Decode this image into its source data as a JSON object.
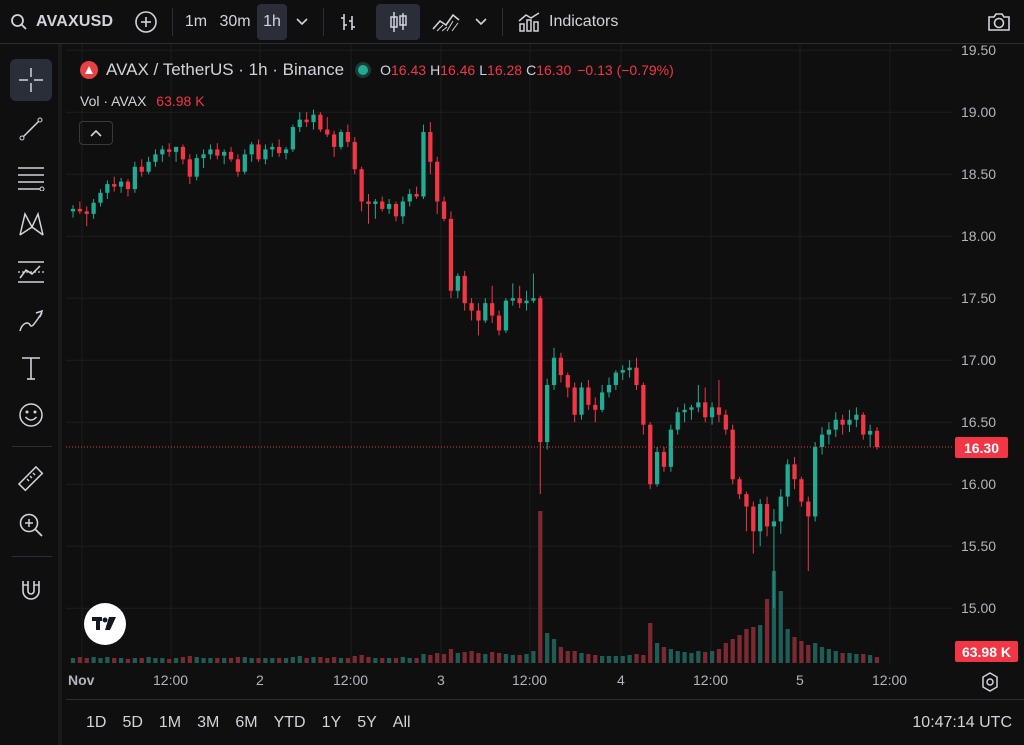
{
  "toolbar": {
    "symbol": "AVAXUSD",
    "intervals": [
      "1m",
      "30m",
      "1h"
    ],
    "active_interval": "1h",
    "indicators_label": "Indicators"
  },
  "legend": {
    "title": "AVAX / TetherUS · 1h · Binance",
    "o_label": "O",
    "o_value": "16.43",
    "h_label": "H",
    "h_value": "16.46",
    "l_label": "L",
    "l_value": "16.28",
    "c_label": "C",
    "c_value": "16.30",
    "change": "−0.13 (−0.79%)",
    "vol_label": "Vol · AVAX",
    "vol_value": "63.98 K"
  },
  "price_axis": {
    "ticks": [
      "19.50",
      "19.00",
      "18.50",
      "18.00",
      "17.50",
      "17.00",
      "16.50",
      "16.00",
      "15.50",
      "15.00"
    ],
    "tick_values": [
      19.5,
      19.0,
      18.5,
      18.0,
      17.5,
      17.0,
      16.5,
      16.0,
      15.5,
      15.0
    ],
    "last_price_badge": "16.30",
    "last_volume_badge": "63.98 K"
  },
  "time_axis": {
    "labels": [
      "Nov",
      "12:00",
      "2",
      "12:00",
      "3",
      "12:00",
      "4",
      "12:00",
      "5",
      "12:00"
    ]
  },
  "bottom": {
    "ranges": [
      "1D",
      "5D",
      "1M",
      "3M",
      "6M",
      "YTD",
      "1Y",
      "5Y",
      "All"
    ],
    "clock": "10:47:14 UTC"
  },
  "colors": {
    "up": "#22ab94",
    "down": "#f23645",
    "vol_up": "#1e5c55",
    "vol_down": "#7a2a30",
    "grid": "#1e1e1e",
    "background": "#0f0f0f"
  },
  "chart_data": {
    "type": "candlestick",
    "ylim": [
      14.55,
      19.55
    ],
    "candles": [
      [
        18.2,
        18.25,
        18.15,
        18.22
      ],
      [
        18.22,
        18.28,
        18.18,
        18.2
      ],
      [
        18.2,
        18.24,
        18.08,
        18.18
      ],
      [
        18.18,
        18.3,
        18.14,
        18.27
      ],
      [
        18.27,
        18.38,
        18.24,
        18.35
      ],
      [
        18.35,
        18.45,
        18.3,
        18.42
      ],
      [
        18.42,
        18.48,
        18.36,
        18.4
      ],
      [
        18.4,
        18.47,
        18.35,
        18.44
      ],
      [
        18.44,
        18.46,
        18.32,
        18.38
      ],
      [
        18.38,
        18.6,
        18.35,
        18.56
      ],
      [
        18.56,
        18.62,
        18.48,
        18.52
      ],
      [
        18.52,
        18.64,
        18.5,
        18.6
      ],
      [
        18.6,
        18.7,
        18.56,
        18.66
      ],
      [
        18.66,
        18.73,
        18.6,
        18.7
      ],
      [
        18.7,
        18.75,
        18.64,
        18.68
      ],
      [
        18.68,
        18.72,
        18.6,
        18.72
      ],
      [
        18.72,
        18.74,
        18.58,
        18.62
      ],
      [
        18.62,
        18.66,
        18.42,
        18.48
      ],
      [
        18.48,
        18.66,
        18.45,
        18.63
      ],
      [
        18.63,
        18.7,
        18.55,
        18.66
      ],
      [
        18.66,
        18.74,
        18.62,
        18.7
      ],
      [
        18.7,
        18.75,
        18.62,
        18.65
      ],
      [
        18.65,
        18.7,
        18.58,
        18.68
      ],
      [
        18.68,
        18.72,
        18.6,
        18.62
      ],
      [
        18.62,
        18.66,
        18.48,
        18.52
      ],
      [
        18.52,
        18.7,
        18.5,
        18.66
      ],
      [
        18.66,
        18.76,
        18.6,
        18.74
      ],
      [
        18.74,
        18.78,
        18.6,
        18.62
      ],
      [
        18.62,
        18.74,
        18.58,
        18.7
      ],
      [
        18.7,
        18.75,
        18.64,
        18.72
      ],
      [
        18.72,
        18.78,
        18.64,
        18.67
      ],
      [
        18.67,
        18.72,
        18.62,
        18.7
      ],
      [
        18.7,
        18.9,
        18.68,
        18.88
      ],
      [
        18.88,
        19.0,
        18.84,
        18.94
      ],
      [
        18.94,
        19.0,
        18.88,
        18.92
      ],
      [
        18.92,
        19.02,
        18.86,
        18.98
      ],
      [
        18.98,
        19.0,
        18.84,
        18.86
      ],
      [
        18.86,
        18.96,
        18.8,
        18.82
      ],
      [
        18.82,
        18.85,
        18.64,
        18.72
      ],
      [
        18.72,
        18.86,
        18.7,
        18.84
      ],
      [
        18.84,
        18.9,
        18.72,
        18.76
      ],
      [
        18.76,
        18.8,
        18.5,
        18.54
      ],
      [
        18.54,
        18.56,
        18.2,
        18.28
      ],
      [
        18.28,
        18.34,
        18.1,
        18.26
      ],
      [
        18.26,
        18.3,
        18.14,
        18.28
      ],
      [
        18.28,
        18.32,
        18.2,
        18.22
      ],
      [
        18.22,
        18.3,
        18.18,
        18.26
      ],
      [
        18.26,
        18.28,
        18.12,
        18.16
      ],
      [
        18.16,
        18.32,
        18.1,
        18.28
      ],
      [
        18.28,
        18.38,
        18.24,
        18.34
      ],
      [
        18.34,
        18.4,
        18.3,
        18.32
      ],
      [
        18.32,
        18.9,
        18.3,
        18.84
      ],
      [
        18.84,
        18.92,
        18.5,
        18.6
      ],
      [
        18.6,
        18.64,
        18.18,
        18.28
      ],
      [
        18.28,
        18.32,
        18.12,
        18.14
      ],
      [
        18.14,
        18.2,
        17.5,
        17.56
      ],
      [
        17.56,
        17.7,
        17.5,
        17.68
      ],
      [
        17.68,
        17.72,
        17.4,
        17.46
      ],
      [
        17.46,
        17.5,
        17.32,
        17.4
      ],
      [
        17.4,
        17.46,
        17.2,
        17.32
      ],
      [
        17.32,
        17.5,
        17.3,
        17.46
      ],
      [
        17.46,
        17.6,
        17.3,
        17.36
      ],
      [
        17.36,
        17.4,
        17.2,
        17.24
      ],
      [
        17.24,
        17.5,
        17.22,
        17.48
      ],
      [
        17.48,
        17.62,
        17.44,
        17.5
      ],
      [
        17.5,
        17.6,
        17.42,
        17.46
      ],
      [
        17.46,
        17.56,
        17.4,
        17.48
      ],
      [
        17.48,
        17.7,
        17.46,
        17.5
      ],
      [
        17.5,
        17.52,
        15.92,
        16.34
      ],
      [
        16.34,
        16.85,
        16.28,
        16.8
      ],
      [
        16.8,
        17.1,
        16.76,
        17.02
      ],
      [
        17.02,
        17.06,
        16.82,
        16.88
      ],
      [
        16.88,
        16.9,
        16.7,
        16.78
      ],
      [
        16.78,
        16.82,
        16.5,
        16.56
      ],
      [
        16.56,
        16.82,
        16.52,
        16.78
      ],
      [
        16.78,
        16.84,
        16.6,
        16.64
      ],
      [
        16.64,
        16.7,
        16.5,
        16.6
      ],
      [
        16.6,
        16.8,
        16.58,
        16.74
      ],
      [
        16.74,
        16.86,
        16.7,
        16.8
      ],
      [
        16.8,
        16.92,
        16.76,
        16.9
      ],
      [
        16.9,
        16.96,
        16.84,
        16.92
      ],
      [
        16.92,
        17.0,
        16.86,
        16.94
      ],
      [
        16.94,
        17.02,
        16.76,
        16.8
      ],
      [
        16.8,
        16.82,
        16.4,
        16.48
      ],
      [
        16.48,
        16.5,
        15.96,
        16.0
      ],
      [
        16.0,
        16.3,
        15.98,
        16.26
      ],
      [
        16.26,
        16.3,
        16.1,
        16.14
      ],
      [
        16.14,
        16.48,
        16.1,
        16.44
      ],
      [
        16.44,
        16.62,
        16.4,
        16.58
      ],
      [
        16.58,
        16.65,
        16.5,
        16.6
      ],
      [
        16.6,
        16.64,
        16.52,
        16.62
      ],
      [
        16.62,
        16.8,
        16.58,
        16.66
      ],
      [
        16.66,
        16.78,
        16.5,
        16.54
      ],
      [
        16.54,
        16.66,
        16.48,
        16.62
      ],
      [
        16.62,
        16.84,
        16.5,
        16.56
      ],
      [
        16.56,
        16.6,
        16.4,
        16.44
      ],
      [
        16.44,
        16.48,
        16.0,
        16.04
      ],
      [
        16.04,
        16.06,
        15.88,
        15.92
      ],
      [
        15.92,
        15.94,
        15.62,
        15.82
      ],
      [
        15.82,
        15.86,
        15.44,
        15.62
      ],
      [
        15.62,
        15.88,
        15.5,
        15.84
      ],
      [
        15.84,
        15.9,
        15.58,
        15.66
      ],
      [
        15.66,
        15.8,
        15.0,
        15.7
      ],
      [
        15.7,
        15.96,
        15.6,
        15.9
      ],
      [
        15.9,
        16.2,
        15.82,
        16.16
      ],
      [
        16.16,
        16.22,
        15.96,
        16.04
      ],
      [
        16.04,
        16.06,
        15.82,
        15.86
      ],
      [
        15.86,
        15.9,
        15.3,
        15.74
      ],
      [
        15.74,
        16.34,
        15.7,
        16.3
      ],
      [
        16.3,
        16.46,
        16.24,
        16.4
      ],
      [
        16.4,
        16.5,
        16.32,
        16.44
      ],
      [
        16.44,
        16.58,
        16.38,
        16.52
      ],
      [
        16.52,
        16.56,
        16.4,
        16.48
      ],
      [
        16.48,
        16.6,
        16.42,
        16.52
      ],
      [
        16.52,
        16.62,
        16.46,
        16.56
      ],
      [
        16.56,
        16.58,
        16.36,
        16.4
      ],
      [
        16.4,
        16.48,
        16.3,
        16.43
      ],
      [
        16.43,
        16.46,
        16.28,
        16.3
      ]
    ],
    "volumes": [
      5,
      6,
      5,
      6,
      5,
      6,
      5,
      5,
      4,
      5,
      5,
      6,
      5,
      5,
      4,
      5,
      6,
      7,
      6,
      5,
      5,
      5,
      5,
      5,
      6,
      6,
      5,
      5,
      5,
      5,
      5,
      5,
      6,
      7,
      5,
      6,
      6,
      5,
      6,
      5,
      5,
      7,
      8,
      6,
      5,
      5,
      5,
      5,
      6,
      5,
      5,
      9,
      8,
      10,
      9,
      14,
      10,
      11,
      12,
      10,
      9,
      11,
      10,
      9,
      8,
      8,
      9,
      12,
      152,
      30,
      24,
      16,
      12,
      12,
      10,
      9,
      8,
      7,
      7,
      7,
      7,
      8,
      9,
      8,
      40,
      20,
      16,
      14,
      12,
      11,
      10,
      12,
      11,
      12,
      14,
      20,
      24,
      28,
      34,
      36,
      38,
      64,
      92,
      72,
      34,
      26,
      22,
      18,
      20,
      16,
      14,
      12,
      10,
      10,
      9,
      9,
      8,
      6
    ]
  }
}
